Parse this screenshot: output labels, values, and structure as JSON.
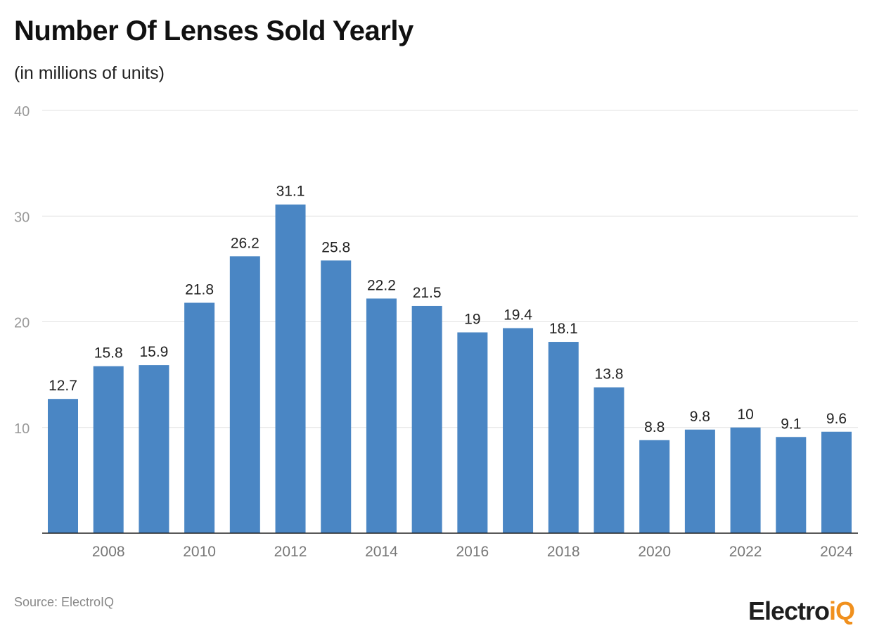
{
  "chart_data": {
    "type": "bar",
    "title": "Number Of Lenses Sold Yearly",
    "subtitle": "(in millions of units)",
    "categories": [
      "2007",
      "2008",
      "2009",
      "2010",
      "2011",
      "2012",
      "2013",
      "2014",
      "2015",
      "2016",
      "2017",
      "2018",
      "2019",
      "2020",
      "2021",
      "2022",
      "2023",
      "2024"
    ],
    "values": [
      12.7,
      15.8,
      15.9,
      21.8,
      26.2,
      31.1,
      25.8,
      22.2,
      21.5,
      19,
      19.4,
      18.1,
      13.8,
      8.8,
      9.8,
      10,
      9.1,
      9.6
    ],
    "x_tick_labels": [
      "2008",
      "2010",
      "2012",
      "2014",
      "2016",
      "2018",
      "2020",
      "2022",
      "2024"
    ],
    "y_ticks": [
      10,
      20,
      30,
      40
    ],
    "ylim": [
      0,
      40
    ],
    "grid": true,
    "bar_color": "#4a86c4"
  },
  "source": "Source: ElectroIQ",
  "logo": {
    "part1": "Electro",
    "part2": "iQ"
  }
}
